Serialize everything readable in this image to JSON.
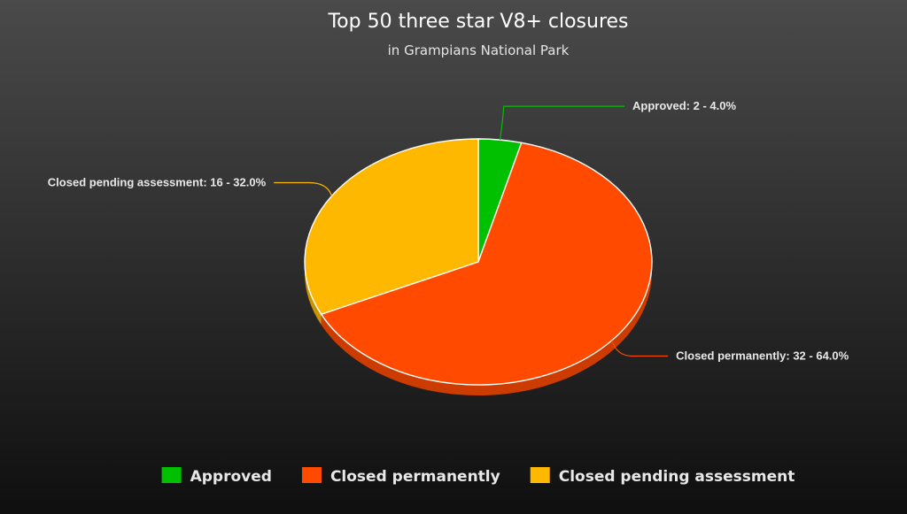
{
  "chart_data": {
    "type": "pie",
    "title": "Top 50 three star V8+ closures",
    "subtitle": "in Grampians National Park",
    "series": [
      {
        "name": "Approved",
        "value": 2,
        "percent": "4.0%",
        "color": "#00c000",
        "data_label": "Approved: 2 - 4.0%"
      },
      {
        "name": "Closed permanently",
        "value": 32,
        "percent": "64.0%",
        "color": "#ff4a00",
        "data_label": "Closed permanently: 32 - 64.0%"
      },
      {
        "name": "Closed pending assessment",
        "value": 16,
        "percent": "32.0%",
        "color": "#ffb800",
        "data_label": "Closed pending assessment: 16 - 32.0%"
      }
    ],
    "legend": {
      "placement": "bottom"
    },
    "three_d": true
  }
}
